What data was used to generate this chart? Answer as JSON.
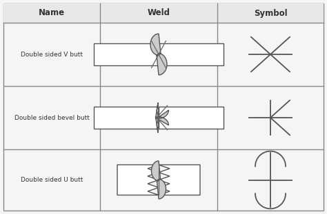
{
  "headers": [
    "Name",
    "Weld",
    "Symbol"
  ],
  "rows": [
    "Double sided V butt",
    "Double sided bevel butt",
    "Double sided U butt"
  ],
  "bg_color": "#f5f5f5",
  "text_color": "#333333",
  "line_color": "#555555",
  "fill_color": "#cccccc",
  "header_bg": "#e8e8e8"
}
